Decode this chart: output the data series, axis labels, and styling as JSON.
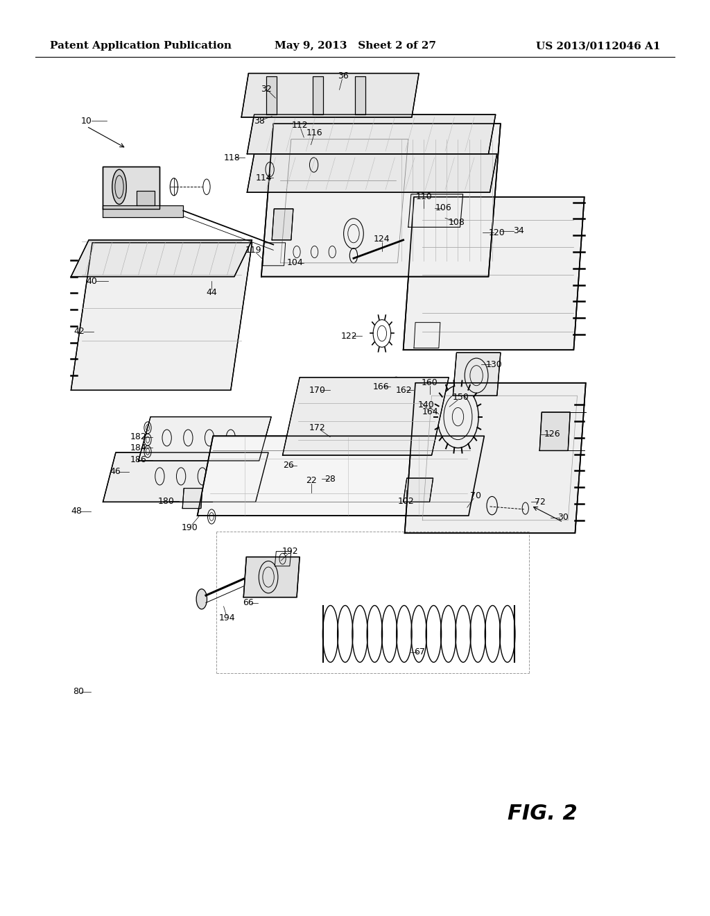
{
  "header_left": "Patent Application Publication",
  "header_center": "May 9, 2013   Sheet 2 of 27",
  "header_right": "US 2013/0112046 A1",
  "figure_label": "FIG. 2",
  "bg_color": "#ffffff",
  "line_color": "#000000",
  "header_fontsize": 11,
  "figure_label_fontsize": 22,
  "ref_fontsize": 9,
  "arrow_color": "#000000",
  "dashed_line_color": "#555555"
}
